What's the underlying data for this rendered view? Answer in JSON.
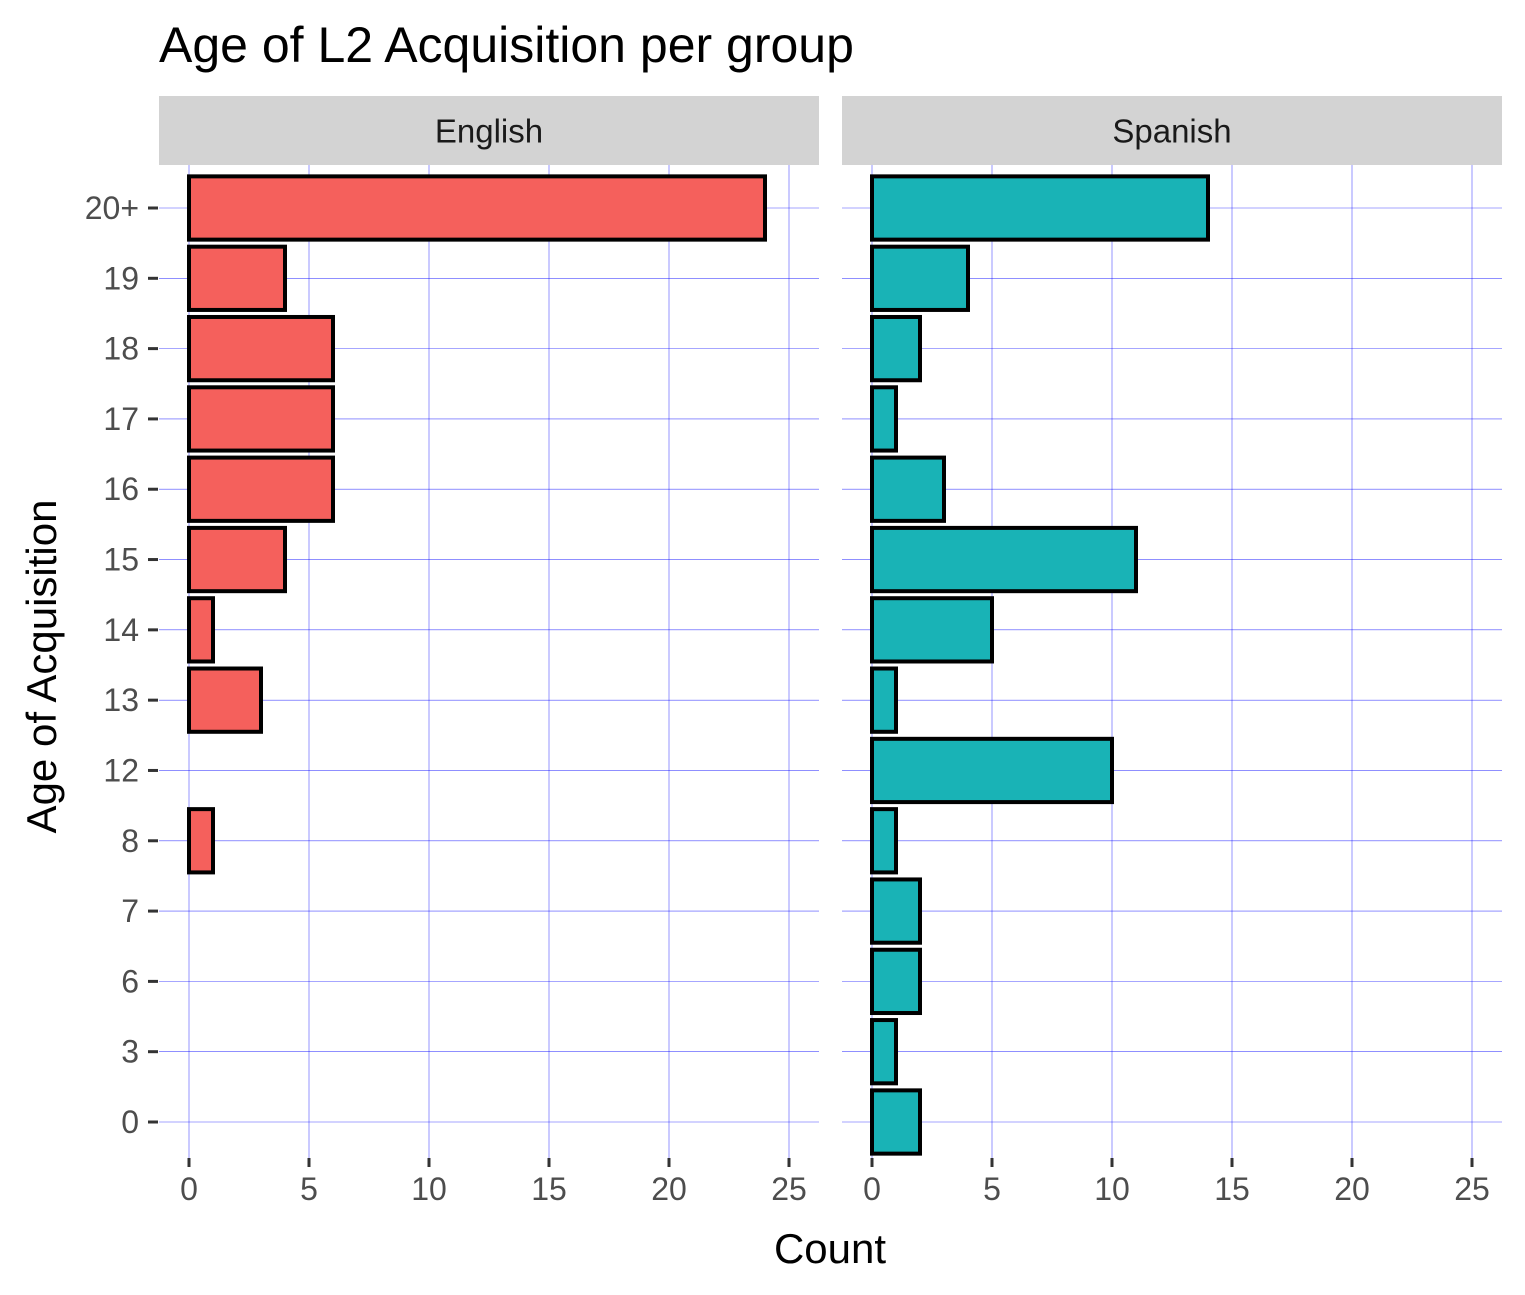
{
  "chart_data": {
    "type": "bar",
    "orientation": "horizontal",
    "title": "Age of L2 Acquisition per group",
    "xlabel": "Count",
    "ylabel": "Age of Acquisition",
    "categories": [
      "0",
      "3",
      "6",
      "7",
      "8",
      "12",
      "13",
      "14",
      "15",
      "16",
      "17",
      "18",
      "19",
      "20+"
    ],
    "xlim": [
      0,
      25
    ],
    "x_ticks": [
      0,
      5,
      10,
      15,
      20,
      25
    ],
    "grid": true,
    "grid_color": "#0000ff",
    "bar_outline_color": "#000000",
    "legend": "none",
    "facets": [
      {
        "name": "English",
        "color": "#f5605c",
        "values": [
          0,
          0,
          0,
          0,
          1,
          0,
          3,
          1,
          4,
          6,
          6,
          6,
          4,
          24
        ]
      },
      {
        "name": "Spanish",
        "color": "#19b3b6",
        "values": [
          2,
          1,
          2,
          2,
          1,
          10,
          1,
          5,
          11,
          3,
          1,
          2,
          4,
          14
        ]
      }
    ]
  },
  "colors": {
    "strip_background": "#d3d3d3",
    "panel_background": "#ffffff"
  }
}
